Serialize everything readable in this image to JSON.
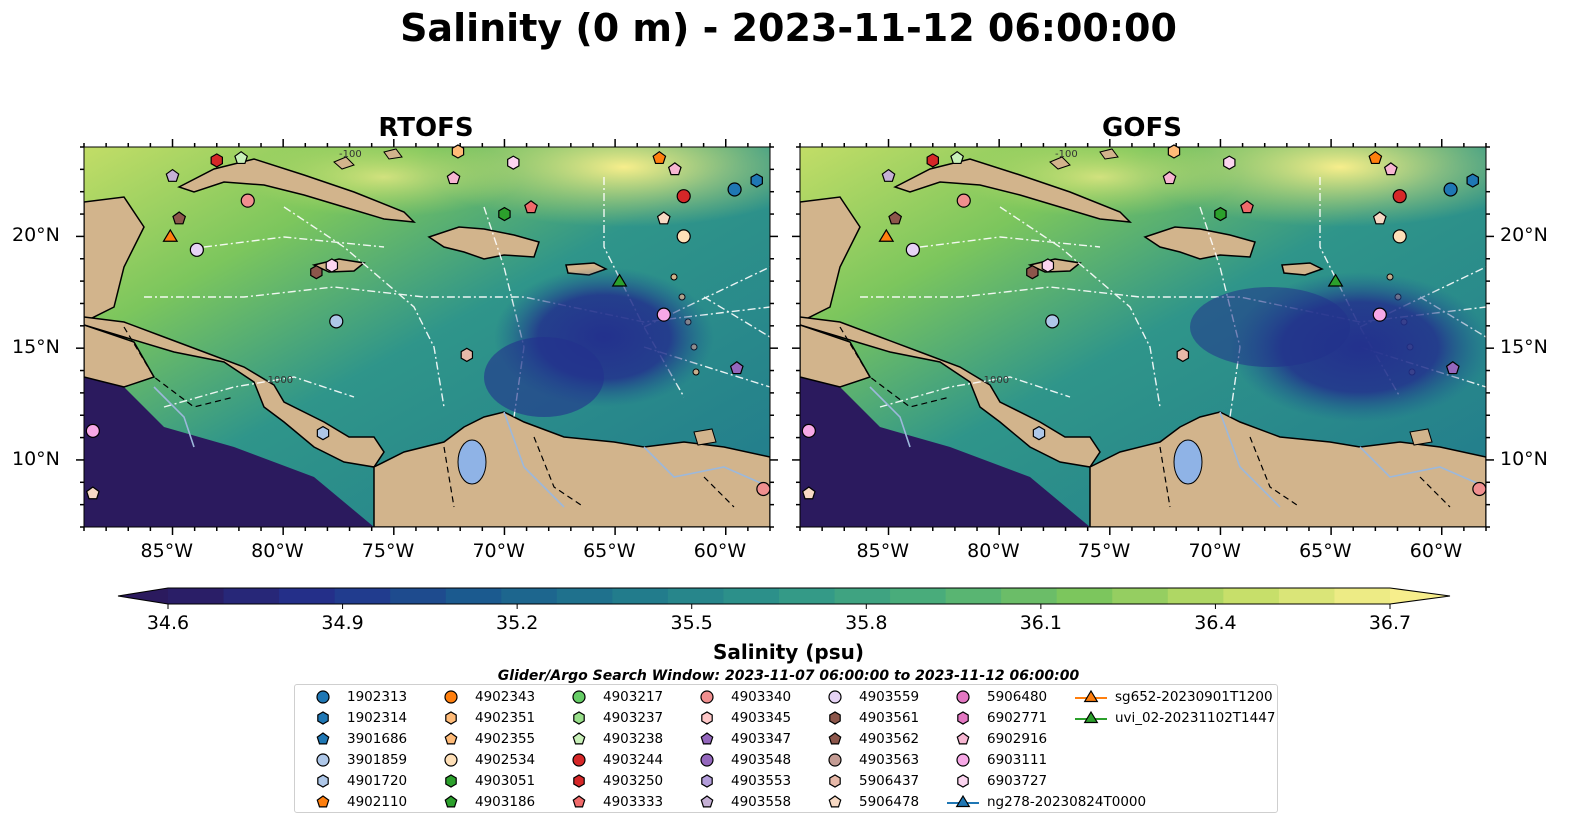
{
  "title": "Salinity (0 m) - 2023-11-12 06:00:00",
  "panels": [
    {
      "title": "RTOFS"
    },
    {
      "title": "GOFS"
    }
  ],
  "map": {
    "lon_range": [
      -89,
      -58
    ],
    "lat_range": [
      7,
      24
    ],
    "lon_ticks": [
      "85°W",
      "80°W",
      "75°W",
      "70°W",
      "65°W",
      "60°W"
    ],
    "lat_ticks": [
      "20°N",
      "15°N",
      "10°N"
    ],
    "land_color": "#d2b48c",
    "lake_color": "#8fb3e6",
    "river_color": "#9cb8db",
    "boundary_style": "black dashed",
    "eez_style": "white dash-dot",
    "bathymetry_contours": [
      "-100",
      "-1000"
    ]
  },
  "colorbar": {
    "label": "Salinity (psu)",
    "range": [
      34.6,
      36.7
    ],
    "extend": "both",
    "ticks": [
      "34.6",
      "34.9",
      "35.2",
      "35.5",
      "35.8",
      "36.1",
      "36.4",
      "36.7"
    ],
    "colormap": [
      "#2b1a5e",
      "#23318d",
      "#1b5a8f",
      "#217a8c",
      "#2f958a",
      "#4cae7a",
      "#7cc65d",
      "#c2dd67",
      "#f7ee8c"
    ]
  },
  "search_window": "Glider/Argo Search Window: 2023-11-07 06:00:00 to 2023-11-12 06:00:00",
  "legend": [
    {
      "label": "1902313",
      "marker": "circle",
      "color": "#1f77b4"
    },
    {
      "label": "1902314",
      "marker": "hexagon",
      "color": "#1f77b4"
    },
    {
      "label": "3901686",
      "marker": "pentagon",
      "color": "#1f77b4"
    },
    {
      "label": "3901859",
      "marker": "circle",
      "color": "#aec7e8"
    },
    {
      "label": "4901720",
      "marker": "hexagon",
      "color": "#aec7e8"
    },
    {
      "label": "4902110",
      "marker": "pentagon",
      "color": "#ff7f0e"
    },
    {
      "label": "4902343",
      "marker": "circle",
      "color": "#ff7f0e"
    },
    {
      "label": "4902351",
      "marker": "hexagon",
      "color": "#ffbb78"
    },
    {
      "label": "4902355",
      "marker": "pentagon",
      "color": "#ffbb78"
    },
    {
      "label": "4902534",
      "marker": "circle",
      "color": "#ffe0b8"
    },
    {
      "label": "4903051",
      "marker": "hexagon",
      "color": "#2ca02c"
    },
    {
      "label": "4903186",
      "marker": "pentagon",
      "color": "#2ca02c"
    },
    {
      "label": "4903217",
      "marker": "circle",
      "color": "#66cc66"
    },
    {
      "label": "4903237",
      "marker": "hexagon",
      "color": "#98df8a"
    },
    {
      "label": "4903238",
      "marker": "pentagon",
      "color": "#c8f0b8"
    },
    {
      "label": "4903244",
      "marker": "circle",
      "color": "#d62728"
    },
    {
      "label": "4903250",
      "marker": "hexagon",
      "color": "#d62728"
    },
    {
      "label": "4903333",
      "marker": "pentagon",
      "color": "#f06a6a"
    },
    {
      "label": "4903340",
      "marker": "circle",
      "color": "#f08f8f"
    },
    {
      "label": "4903345",
      "marker": "hexagon",
      "color": "#ffc8c8"
    },
    {
      "label": "4903347",
      "marker": "pentagon",
      "color": "#9467bd"
    },
    {
      "label": "4903548",
      "marker": "circle",
      "color": "#9467bd"
    },
    {
      "label": "4903553",
      "marker": "hexagon",
      "color": "#b39ddb"
    },
    {
      "label": "4903558",
      "marker": "pentagon",
      "color": "#c5b0d5"
    },
    {
      "label": "4903559",
      "marker": "circle",
      "color": "#e6d3f5"
    },
    {
      "label": "4903561",
      "marker": "hexagon",
      "color": "#8c564b"
    },
    {
      "label": "4903562",
      "marker": "pentagon",
      "color": "#8c564b"
    },
    {
      "label": "4903563",
      "marker": "circle",
      "color": "#c49c94"
    },
    {
      "label": "5906437",
      "marker": "hexagon",
      "color": "#e7b9a9"
    },
    {
      "label": "5906478",
      "marker": "pentagon",
      "color": "#f7d9c4"
    },
    {
      "label": "5906480",
      "marker": "circle",
      "color": "#e377c2"
    },
    {
      "label": "6902771",
      "marker": "hexagon",
      "color": "#e377c2"
    },
    {
      "label": "6902916",
      "marker": "pentagon",
      "color": "#f7b6d2"
    },
    {
      "label": "6903111",
      "marker": "circle",
      "color": "#f7a8e6"
    },
    {
      "label": "6903727",
      "marker": "hexagon",
      "color": "#fcd5f0"
    },
    {
      "label": "ng278-20230824T0000",
      "marker": "triangle-line",
      "color": "#1f77b4"
    },
    {
      "label": "sg652-20230901T1200",
      "marker": "triangle-line",
      "color": "#ff7f0e"
    },
    {
      "label": "uvi_02-20231102T1447",
      "marker": "triangle-line",
      "color": "#2ca02c"
    }
  ],
  "platforms": [
    {
      "id": "4903250",
      "lon": -83.0,
      "lat": 23.4
    },
    {
      "id": "4903558",
      "lon": -85.0,
      "lat": 22.7
    },
    {
      "id": "4903238",
      "lon": -81.9,
      "lat": 23.5
    },
    {
      "id": "4903340",
      "lon": -81.6,
      "lat": 21.6
    },
    {
      "id": "4903562",
      "lon": -84.7,
      "lat": 20.8
    },
    {
      "id": "sg652-20230901T1200",
      "lon": -85.1,
      "lat": 20.0
    },
    {
      "id": "4903559",
      "lon": -83.9,
      "lat": 19.4
    },
    {
      "id": "4903561",
      "lon": -78.5,
      "lat": 18.4
    },
    {
      "id": "6903727",
      "lon": -77.8,
      "lat": 18.7
    },
    {
      "id": "3901859",
      "lon": -77.6,
      "lat": 16.2
    },
    {
      "id": "4901720",
      "lon": -78.2,
      "lat": 11.2
    },
    {
      "id": "5906437",
      "lon": -71.7,
      "lat": 14.7
    },
    {
      "id": "4902351",
      "lon": -72.1,
      "lat": 23.8
    },
    {
      "id": "6902916",
      "lon": -72.3,
      "lat": 22.6
    },
    {
      "id": "6903727",
      "lon": -69.6,
      "lat": 23.3
    },
    {
      "id": "4903051",
      "lon": -70.0,
      "lat": 21.0
    },
    {
      "id": "4903333",
      "lon": -68.8,
      "lat": 21.3
    },
    {
      "id": "uvi_02-20231102T1447",
      "lon": -64.8,
      "lat": 18.0
    },
    {
      "id": "4902110",
      "lon": -63.0,
      "lat": 23.5
    },
    {
      "id": "6902916",
      "lon": -62.3,
      "lat": 23.0
    },
    {
      "id": "4903244",
      "lon": -61.9,
      "lat": 21.8
    },
    {
      "id": "5906478",
      "lon": -62.8,
      "lat": 20.8
    },
    {
      "id": "4902534",
      "lon": -61.9,
      "lat": 20.0
    },
    {
      "id": "1902313",
      "lon": -59.6,
      "lat": 22.1
    },
    {
      "id": "1902314",
      "lon": -58.6,
      "lat": 22.5
    },
    {
      "id": "6903111",
      "lon": -62.8,
      "lat": 16.5
    },
    {
      "id": "4903347",
      "lon": -59.5,
      "lat": 14.1
    },
    {
      "id": "6903111",
      "lon": -88.6,
      "lat": 11.3
    },
    {
      "id": "5906478",
      "lon": -88.6,
      "lat": 8.5
    },
    {
      "id": "4903340",
      "lon": -58.3,
      "lat": 8.7
    }
  ]
}
